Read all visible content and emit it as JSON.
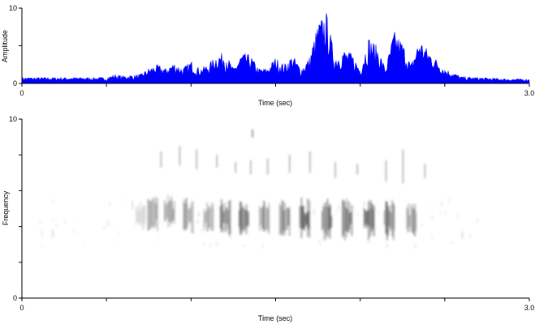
{
  "chart_data": [
    {
      "type": "area",
      "ylabel": "Amplitude",
      "xlabel": "Time (sec)",
      "xlim": [
        0,
        3.0
      ],
      "ylim": [
        0,
        10
      ],
      "x_tick_labels": [
        "0",
        "3.0"
      ],
      "y_tick_labels": [
        "0",
        "5",
        "10"
      ],
      "series_color": "#0000ff",
      "envelope": {
        "x": [
          0.0,
          0.1,
          0.2,
          0.3,
          0.4,
          0.5,
          0.55,
          0.6,
          0.7,
          0.75,
          0.8,
          0.85,
          0.9,
          0.95,
          1.0,
          1.05,
          1.1,
          1.15,
          1.2,
          1.25,
          1.3,
          1.35,
          1.4,
          1.45,
          1.5,
          1.55,
          1.6,
          1.65,
          1.7,
          1.75,
          1.8,
          1.85,
          1.9,
          1.95,
          2.0,
          2.05,
          2.1,
          2.15,
          2.2,
          2.25,
          2.3,
          2.35,
          2.4,
          2.5,
          2.6,
          2.7,
          2.8,
          2.9,
          3.0
        ],
        "y": [
          0.8,
          0.8,
          0.8,
          0.8,
          0.8,
          0.8,
          1.2,
          1.0,
          1.2,
          2.0,
          2.5,
          2.0,
          2.8,
          2.0,
          3.0,
          2.0,
          2.5,
          3.8,
          4.2,
          2.0,
          4.0,
          3.8,
          2.0,
          2.0,
          3.5,
          2.5,
          3.8,
          2.0,
          3.5,
          8.0,
          9.5,
          3.5,
          4.5,
          4.0,
          2.0,
          6.2,
          5.0,
          2.0,
          7.0,
          5.5,
          2.5,
          6.0,
          4.5,
          2.0,
          0.9,
          0.8,
          0.7,
          0.6,
          0.6
        ]
      }
    },
    {
      "type": "heatmap",
      "ylabel": "Frequency",
      "xlabel": "Time (sec)",
      "xlim": [
        0,
        3.0
      ],
      "ylim": [
        0,
        10
      ],
      "x_tick_labels": [
        "0",
        "3.0"
      ],
      "y_tick_labels": [
        "0",
        "10"
      ],
      "color_scale": "grayscale (white = low, black = high)",
      "blobs": [
        {
          "t": 0.7,
          "f": 4.6,
          "intensity": 0.25
        },
        {
          "t": 0.77,
          "f": 4.7,
          "intensity": 0.55
        },
        {
          "t": 0.87,
          "f": 4.8,
          "intensity": 0.55
        },
        {
          "t": 0.98,
          "f": 4.6,
          "intensity": 0.55
        },
        {
          "t": 1.1,
          "f": 4.5,
          "intensity": 0.5
        },
        {
          "t": 1.2,
          "f": 4.5,
          "intensity": 0.75
        },
        {
          "t": 1.31,
          "f": 4.5,
          "intensity": 0.75
        },
        {
          "t": 1.43,
          "f": 4.5,
          "intensity": 0.6
        },
        {
          "t": 1.55,
          "f": 4.4,
          "intensity": 0.7
        },
        {
          "t": 1.67,
          "f": 4.4,
          "intensity": 0.9
        },
        {
          "t": 1.8,
          "f": 4.4,
          "intensity": 0.8
        },
        {
          "t": 1.92,
          "f": 4.4,
          "intensity": 0.85
        },
        {
          "t": 2.05,
          "f": 4.4,
          "intensity": 0.9
        },
        {
          "t": 2.17,
          "f": 4.4,
          "intensity": 0.85
        },
        {
          "t": 2.3,
          "f": 4.4,
          "intensity": 0.55
        }
      ],
      "harmonics": [
        {
          "t": 0.82,
          "f1": 7.3,
          "f2": 8.2
        },
        {
          "t": 0.93,
          "f1": 7.4,
          "f2": 8.5
        },
        {
          "t": 1.03,
          "f1": 7.2,
          "f2": 8.3
        },
        {
          "t": 1.15,
          "f1": 7.3,
          "f2": 8.0
        },
        {
          "t": 1.26,
          "f1": 7.0,
          "f2": 7.6
        },
        {
          "t": 1.35,
          "f1": 6.9,
          "f2": 7.7
        },
        {
          "t": 1.45,
          "f1": 6.9,
          "f2": 7.8
        },
        {
          "t": 1.58,
          "f1": 7.0,
          "f2": 8.0
        },
        {
          "t": 1.7,
          "f1": 7.0,
          "f2": 8.2
        },
        {
          "t": 1.85,
          "f1": 6.7,
          "f2": 7.6
        },
        {
          "t": 1.98,
          "f1": 6.9,
          "f2": 7.5
        },
        {
          "t": 2.15,
          "f1": 6.5,
          "f2": 7.7
        },
        {
          "t": 2.25,
          "f1": 6.4,
          "f2": 8.3
        },
        {
          "t": 2.38,
          "f1": 6.7,
          "f2": 7.5
        }
      ],
      "isolated_marks": [
        {
          "t": 1.36,
          "f": 9.2,
          "intensity": 0.6
        },
        {
          "t": 0.18,
          "f": 3.6,
          "intensity": 0.2
        },
        {
          "t": 2.6,
          "f": 3.5,
          "intensity": 0.2
        },
        {
          "t": 0.65,
          "f": 5.2,
          "intensity": 0.2
        }
      ]
    }
  ]
}
